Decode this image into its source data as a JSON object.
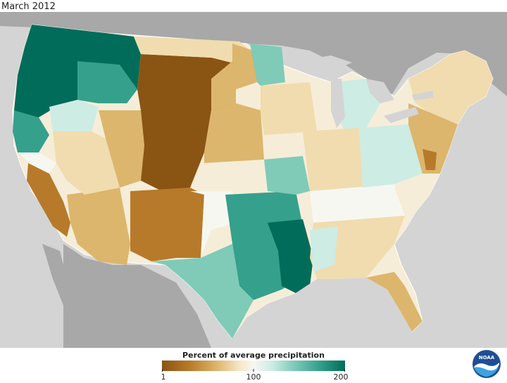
{
  "title": "March 2012",
  "legend": {
    "title": "Percent of average precipitation",
    "ticks": [
      {
        "label": "1",
        "frac": 0.0
      },
      {
        "label": "100",
        "frac": 0.5
      },
      {
        "label": "200",
        "frac": 1.0
      }
    ],
    "colors": [
      "#8a5413",
      "#b77a2a",
      "#dcb66c",
      "#f5e6c4",
      "#f7f7f2",
      "#cdece4",
      "#7fcbb8",
      "#35a08c",
      "#016c59"
    ]
  },
  "logo": {
    "name": "noaa-logo",
    "text": "NOAA"
  },
  "palette": {
    "dark_brown": "#8a5413",
    "brown": "#b77a2a",
    "tan": "#dcb66c",
    "light_tan": "#f0dcae",
    "cream": "#f6edd8",
    "white": "#f7f7f2",
    "light_teal": "#cdece4",
    "mid_teal": "#7fcbb8",
    "teal": "#35a08c",
    "dark_teal": "#016c59",
    "land_outside": "#a8a8a8",
    "water": "#d4d4d4",
    "outline": "#ffffff"
  }
}
